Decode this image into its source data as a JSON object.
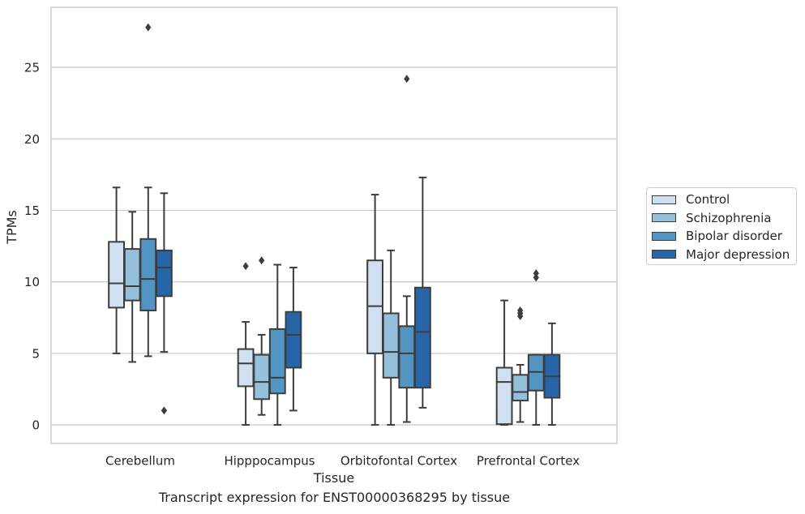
{
  "chart_data": {
    "type": "box",
    "title": "",
    "caption": "Transcript expression for ENST00000368295 by tissue",
    "xlabel": "Tissue",
    "ylabel": "TPMs",
    "ylim": [
      -1.3,
      29.2
    ],
    "yticks": [
      0,
      5,
      10,
      15,
      20,
      25
    ],
    "grid": "horizontal",
    "legend_position": "right",
    "categories": [
      "Cerebellum",
      "Hipppocampus",
      "Orbitofontal Cortex",
      "Prefrontal Cortex"
    ],
    "series": [
      {
        "name": "Control",
        "color": "#d0e0f0",
        "boxes": [
          {
            "whisker_low": 5.0,
            "q1": 8.2,
            "median": 9.9,
            "q3": 12.8,
            "whisker_high": 16.6,
            "outliers": []
          },
          {
            "whisker_low": 0.0,
            "q1": 2.7,
            "median": 4.3,
            "q3": 5.3,
            "whisker_high": 7.2,
            "outliers": [
              11.1
            ]
          },
          {
            "whisker_low": 0.0,
            "q1": 5.0,
            "median": 8.3,
            "q3": 11.5,
            "whisker_high": 16.1,
            "outliers": []
          },
          {
            "whisker_low": 0.0,
            "q1": 0.05,
            "median": 3.0,
            "q3": 4.0,
            "whisker_high": 8.7,
            "outliers": []
          }
        ]
      },
      {
        "name": "Schizophrenia",
        "color": "#94c0dc",
        "boxes": [
          {
            "whisker_low": 4.4,
            "q1": 8.7,
            "median": 9.7,
            "q3": 12.3,
            "whisker_high": 14.9,
            "outliers": []
          },
          {
            "whisker_low": 0.7,
            "q1": 1.8,
            "median": 3.0,
            "q3": 4.9,
            "whisker_high": 6.3,
            "outliers": [
              11.5
            ]
          },
          {
            "whisker_low": 0.0,
            "q1": 3.3,
            "median": 5.1,
            "q3": 7.8,
            "whisker_high": 12.2,
            "outliers": []
          },
          {
            "whisker_low": 0.2,
            "q1": 1.7,
            "median": 2.3,
            "q3": 3.5,
            "whisker_high": 4.2,
            "outliers": [
              7.6,
              7.8,
              8.0
            ]
          }
        ]
      },
      {
        "name": "Bipolar disorder",
        "color": "#5395c2",
        "boxes": [
          {
            "whisker_low": 4.8,
            "q1": 8.0,
            "median": 10.2,
            "q3": 13.0,
            "whisker_high": 16.6,
            "outliers": [
              27.8
            ]
          },
          {
            "whisker_low": 0.0,
            "q1": 2.2,
            "median": 3.3,
            "q3": 6.7,
            "whisker_high": 11.2,
            "outliers": []
          },
          {
            "whisker_low": 0.2,
            "q1": 2.6,
            "median": 5.0,
            "q3": 6.9,
            "whisker_high": 9.0,
            "outliers": [
              24.2
            ]
          },
          {
            "whisker_low": 0.0,
            "q1": 2.4,
            "median": 3.7,
            "q3": 4.9,
            "whisker_high": 4.9,
            "outliers": [
              10.3,
              10.6
            ]
          }
        ]
      },
      {
        "name": "Major depression",
        "color": "#2565a8",
        "boxes": [
          {
            "whisker_low": 5.1,
            "q1": 9.0,
            "median": 11.0,
            "q3": 12.2,
            "whisker_high": 16.2,
            "outliers": [
              1.0
            ]
          },
          {
            "whisker_low": 1.0,
            "q1": 4.0,
            "median": 6.3,
            "q3": 7.9,
            "whisker_high": 11.0,
            "outliers": []
          },
          {
            "whisker_low": 1.2,
            "q1": 2.6,
            "median": 6.5,
            "q3": 9.6,
            "whisker_high": 17.3,
            "outliers": []
          },
          {
            "whisker_low": 0.0,
            "q1": 1.9,
            "median": 3.4,
            "q3": 4.9,
            "whisker_high": 7.1,
            "outliers": []
          }
        ]
      }
    ]
  }
}
